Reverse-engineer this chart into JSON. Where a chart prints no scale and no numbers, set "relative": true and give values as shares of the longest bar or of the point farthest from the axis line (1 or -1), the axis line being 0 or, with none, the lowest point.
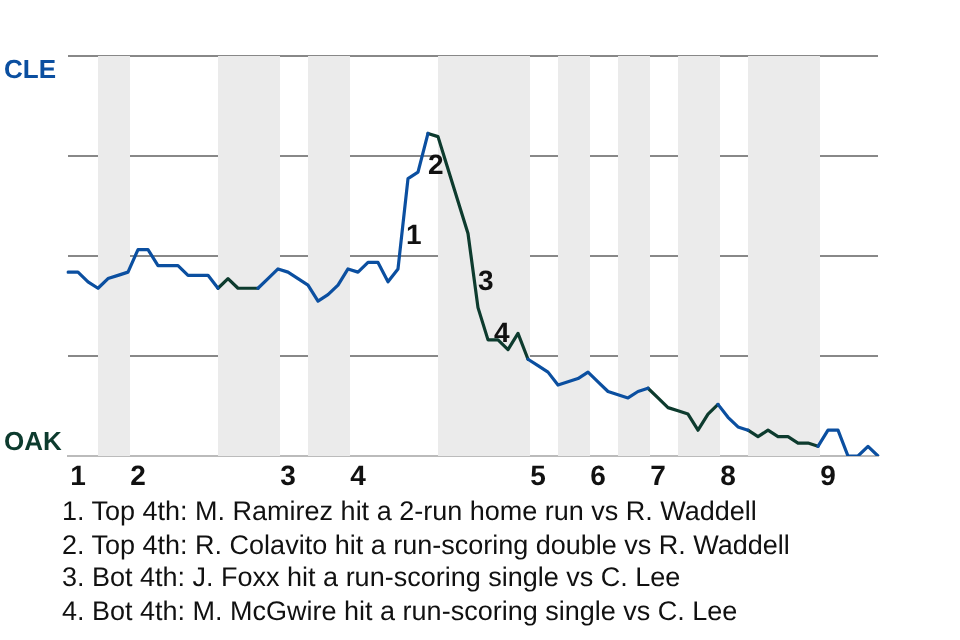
{
  "chart_data": {
    "type": "line",
    "relative": true,
    "categories": [
      null,
      "1",
      null,
      null,
      null,
      null,
      null,
      "2",
      null,
      null,
      null,
      null,
      null,
      null,
      null,
      null,
      null,
      null,
      null,
      null,
      null,
      null,
      "3",
      null,
      null,
      null,
      null,
      null,
      null,
      "4",
      null,
      null,
      null,
      null,
      null,
      null,
      null,
      null,
      null,
      null,
      null,
      null,
      null,
      null,
      null,
      null,
      null,
      "5",
      null,
      null,
      null,
      null,
      null,
      "6",
      null,
      null,
      null,
      null,
      null,
      "7",
      null,
      null,
      null,
      null,
      null,
      null,
      "8",
      null,
      null,
      null,
      null,
      null,
      null,
      null,
      null,
      null,
      "9",
      null,
      null,
      null,
      null,
      null
    ],
    "series": [
      {
        "color": "#0b4fa0",
        "values": [
          0.57,
          0.57,
          0.54,
          0.52,
          0.55,
          0.56,
          0.57,
          0.64,
          0.64,
          0.59,
          0.59,
          0.59,
          0.56,
          0.56,
          0.56,
          0.52,
          null,
          null,
          null,
          0.52,
          0.55,
          0.58,
          0.57,
          0.55,
          0.53,
          0.48,
          0.5,
          0.53,
          0.58,
          0.57,
          0.6,
          0.6,
          0.54,
          0.58,
          0.86,
          0.88,
          1,
          null,
          null,
          null,
          null,
          null,
          null,
          null,
          null,
          null,
          0.3,
          0.28,
          0.26,
          0.22,
          0.23,
          0.24,
          0.26,
          0.23,
          0.2,
          0.19,
          0.18,
          0.2,
          0.21,
          null,
          null,
          null,
          null,
          null,
          null,
          0.16,
          0.12,
          0.09,
          0.08,
          null,
          null,
          null,
          null,
          null,
          null,
          0.03,
          0.08,
          0.08,
          0,
          0,
          0.03,
          0
        ]
      },
      {
        "color": "#0d3b2e",
        "values": [
          null,
          null,
          null,
          null,
          null,
          null,
          null,
          null,
          null,
          null,
          null,
          null,
          null,
          null,
          null,
          0.52,
          0.55,
          0.52,
          0.52,
          0.52,
          null,
          null,
          null,
          null,
          null,
          null,
          null,
          null,
          null,
          null,
          null,
          null,
          null,
          null,
          null,
          null,
          1,
          0.99,
          0.89,
          0.79,
          0.69,
          0.46,
          0.36,
          0.36,
          0.33,
          0.38,
          0.3,
          null,
          null,
          null,
          null,
          null,
          null,
          null,
          null,
          null,
          null,
          null,
          0.21,
          0.18,
          0.15,
          0.14,
          0.13,
          0.08,
          0.13,
          0.16,
          null,
          null,
          0.08,
          0.06,
          0.08,
          0.06,
          0.06,
          0.04,
          0.04,
          0.03,
          null,
          null,
          null,
          null,
          null,
          null
        ]
      }
    ],
    "grid": "y",
    "marker": "none",
    "line_style": "solid",
    "annotations": [
      "CLE",
      "OAK",
      "1",
      "2",
      "3",
      "4",
      "1. Top 4th: M. Ramirez hit a 2-run home run vs R. Waddell",
      "2. Top 4th: R. Colavito hit a run-scoring double vs R. Waddell",
      "3. Bot 4th: J. Foxx hit a run-scoring single vs C. Lee",
      "4. Bot 4th: M. McGwire hit a run-scoring single vs C. Lee"
    ]
  }
}
